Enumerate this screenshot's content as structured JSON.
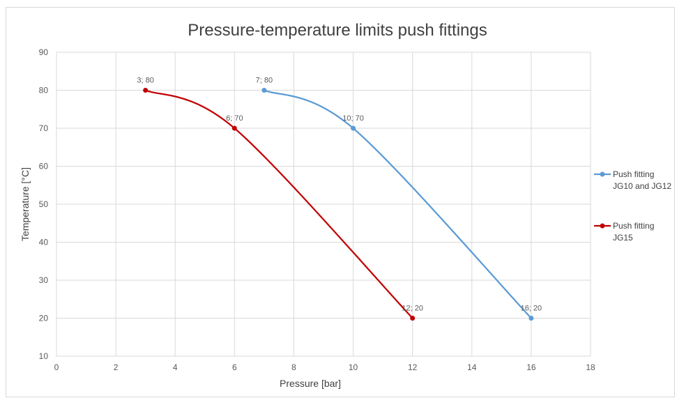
{
  "chart_data": {
    "type": "line",
    "title": "Pressure-temperature limits push fittings",
    "xlabel": "Pressure [bar]",
    "ylabel": "Temperature [°C]",
    "xlim": [
      0,
      18
    ],
    "ylim": [
      10,
      90
    ],
    "x_ticks": [
      0,
      2,
      4,
      6,
      8,
      10,
      12,
      14,
      16,
      18
    ],
    "y_ticks": [
      10,
      20,
      30,
      40,
      50,
      60,
      70,
      80,
      90
    ],
    "grid": true,
    "smooth": true,
    "legend_position": "right",
    "series": [
      {
        "name": "Push fitting JG10 and JG12",
        "legend_lines": [
          "Push fitting",
          "JG10 and JG12"
        ],
        "color": "#5b9bd5",
        "points": [
          {
            "x": 7,
            "y": 80,
            "label": "7; 80"
          },
          {
            "x": 10,
            "y": 70,
            "label": "10; 70"
          },
          {
            "x": 16,
            "y": 20,
            "label": "16; 20"
          }
        ]
      },
      {
        "name": "Push fitting JG15",
        "legend_lines": [
          "Push fitting",
          "JG15"
        ],
        "color": "#c00000",
        "points": [
          {
            "x": 3,
            "y": 80,
            "label": "3; 80"
          },
          {
            "x": 6,
            "y": 70,
            "label": "6; 70"
          },
          {
            "x": 12,
            "y": 20,
            "label": "12; 20"
          }
        ]
      }
    ]
  }
}
